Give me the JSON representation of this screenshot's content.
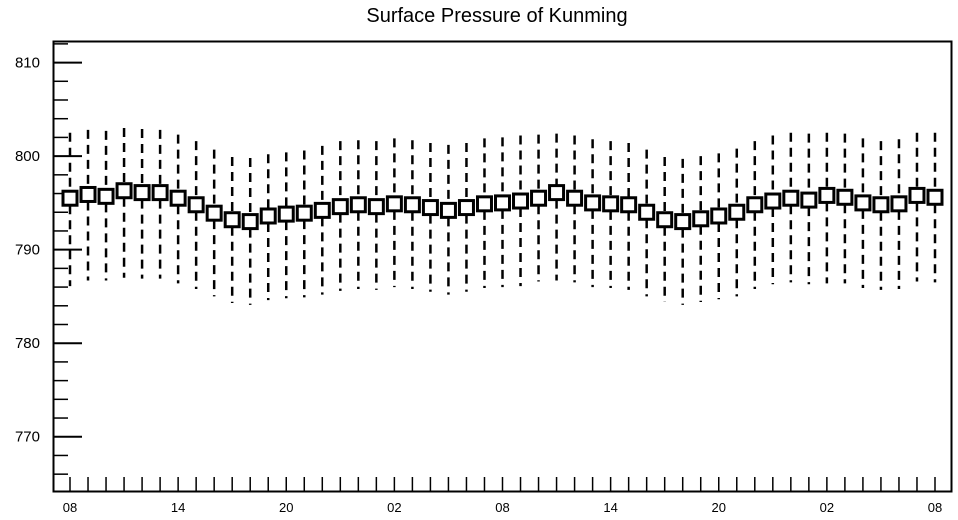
{
  "chart_data": {
    "type": "box",
    "title": "Surface Pressure of Kunming",
    "xlabel": "",
    "ylabel": "",
    "ylim": [
      764.2,
      812.2
    ],
    "y_ticks": [
      770,
      780,
      790,
      800,
      810
    ],
    "y_tick_labels": [
      "770",
      "780",
      "790",
      "800",
      "810"
    ],
    "x_tick_labels": [
      "08",
      "14",
      "20",
      "02",
      "08",
      "14",
      "20",
      "02",
      "08"
    ],
    "x_tick_positions": [
      0,
      6,
      12,
      18,
      24,
      30,
      36,
      42,
      48
    ],
    "series": [
      {
        "x": [
          0,
          1,
          2,
          3,
          4,
          5,
          6,
          7,
          8,
          9,
          10,
          11,
          12,
          13,
          14,
          15,
          16,
          17,
          18,
          19,
          20,
          21,
          22,
          23,
          24,
          25,
          26,
          27,
          28,
          29,
          30,
          31,
          32,
          33,
          34,
          35,
          36,
          37,
          38,
          39,
          40,
          41,
          42,
          43,
          44,
          45,
          46,
          47,
          48
        ],
        "box_center": [
          795.5,
          795.9,
          795.7,
          796.3,
          796.1,
          796.1,
          795.5,
          794.8,
          793.9,
          793.2,
          793.0,
          793.6,
          793.8,
          793.9,
          794.2,
          794.6,
          794.8,
          794.6,
          794.9,
          794.8,
          794.5,
          794.2,
          794.5,
          794.9,
          795.0,
          795.2,
          795.5,
          796.1,
          795.5,
          795.0,
          794.9,
          794.8,
          794.0,
          793.2,
          793.0,
          793.3,
          793.6,
          794.0,
          794.8,
          795.2,
          795.5,
          795.3,
          795.8,
          795.6,
          795.0,
          794.8,
          794.9,
          795.8,
          795.6
        ],
        "whisker_high": [
          802.5,
          802.8,
          802.7,
          803.0,
          802.9,
          802.8,
          802.3,
          801.6,
          800.7,
          799.9,
          799.8,
          800.2,
          800.4,
          800.6,
          801.1,
          801.6,
          801.7,
          801.6,
          801.9,
          801.7,
          801.4,
          801.2,
          801.4,
          801.9,
          802.0,
          802.2,
          802.3,
          802.4,
          802.2,
          801.8,
          801.6,
          801.4,
          800.7,
          799.9,
          799.7,
          800.0,
          800.3,
          800.8,
          801.6,
          802.2,
          802.5,
          802.4,
          802.5,
          802.4,
          801.9,
          801.6,
          801.8,
          802.5,
          802.5
        ],
        "whisker_low": [
          786.1,
          786.7,
          786.7,
          787.0,
          786.9,
          786.9,
          786.4,
          785.8,
          785.0,
          784.3,
          784.1,
          784.6,
          784.8,
          784.9,
          785.2,
          785.6,
          785.8,
          785.7,
          786.0,
          785.8,
          785.5,
          785.2,
          785.5,
          785.9,
          786.0,
          786.1,
          786.6,
          786.7,
          786.5,
          786.0,
          785.9,
          785.7,
          785.0,
          784.4,
          784.1,
          784.4,
          784.7,
          785.0,
          785.8,
          786.3,
          786.5,
          786.3,
          786.4,
          786.4,
          785.9,
          785.7,
          785.8,
          786.6,
          786.5
        ]
      }
    ],
    "grid": false,
    "legend": "none"
  }
}
